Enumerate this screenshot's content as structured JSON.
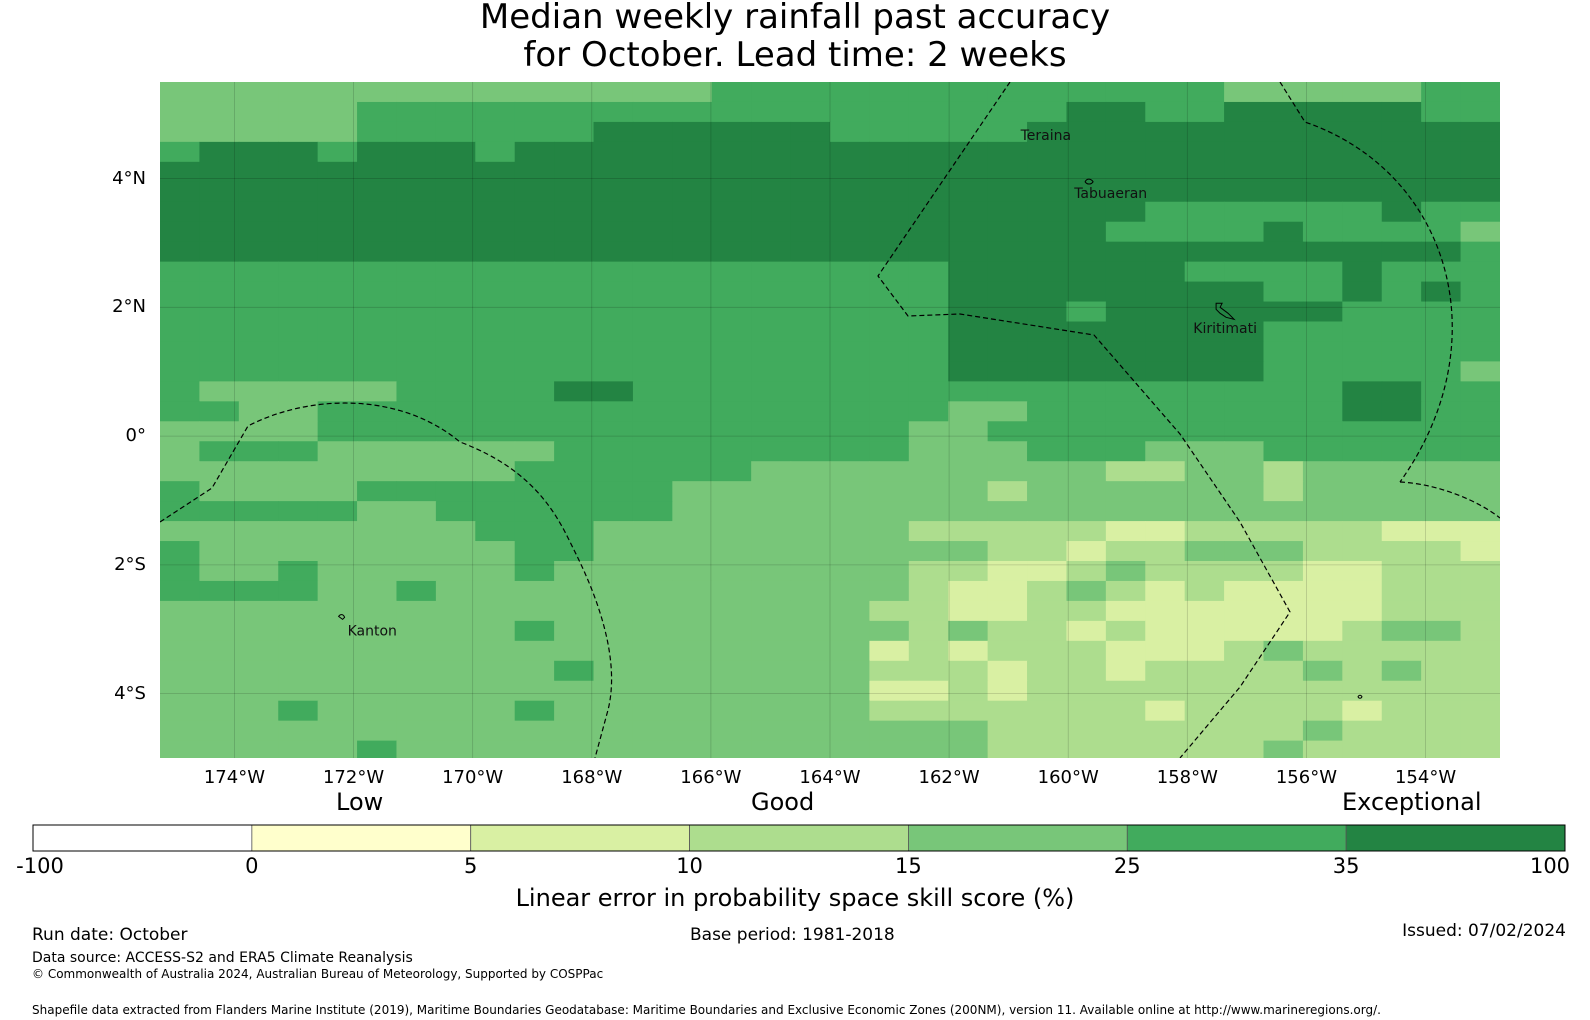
{
  "title": {
    "line1": "Median weekly rainfall past accuracy",
    "line2": "for October. Lead time: 2 weeks"
  },
  "map": {
    "lon_range": [
      -175.25,
      -152.75
    ],
    "lat_range": [
      -5.0,
      5.5
    ],
    "lat_ticks": [
      {
        "value": 4,
        "label": "4°N"
      },
      {
        "value": 2,
        "label": "2°N"
      },
      {
        "value": 0,
        "label": "0°"
      },
      {
        "value": -2,
        "label": "2°S"
      },
      {
        "value": -4,
        "label": "4°S"
      }
    ],
    "lon_ticks": [
      {
        "value": -174,
        "label": "174°W"
      },
      {
        "value": -172,
        "label": "172°W"
      },
      {
        "value": -170,
        "label": "170°W"
      },
      {
        "value": -168,
        "label": "168°W"
      },
      {
        "value": -166,
        "label": "166°W"
      },
      {
        "value": -164,
        "label": "164°W"
      },
      {
        "value": -162,
        "label": "162°W"
      },
      {
        "value": -160,
        "label": "160°W"
      },
      {
        "value": -158,
        "label": "158°W"
      },
      {
        "value": -156,
        "label": "156°W"
      },
      {
        "value": -154,
        "label": "154°W"
      }
    ],
    "places": [
      {
        "name": "Teraina",
        "lon": -160.8,
        "lat": 4.6
      },
      {
        "name": "Tabuaeran",
        "lon": -159.9,
        "lat": 3.7
      },
      {
        "name": "Kiritimati",
        "lon": -157.9,
        "lat": 1.6
      },
      {
        "name": "Kanton",
        "lon": -172.1,
        "lat": -3.1
      }
    ],
    "category_colors": [
      "#ffffff",
      "#ffffcc",
      "#d9f0a3",
      "#addd8e",
      "#78c679",
      "#41ab5d",
      "#238443"
    ],
    "skill_grid_rows_north_to_south": [
      "4444444444444455555555555554444455",
      "4444455555555555555555566556666655",
      "4444455555566666655555666666666666",
      "5666566656666666666666666666666666",
      "6666666666666666666666666666666666",
      "6666666666666666666666666666666666",
      "6666666666666666666666666555555655",
      "6666666666666666666666665555655554",
      "6666666666666666666666666666666665",
      "5555555555555555555566666655556555",
      "5555555555555555555566666666556565",
      "5555555555555555555566656666665555",
      "5555555555555555555566666666555555",
      "5555555555555555555566666666555555",
      "5555555555555555555566666666555554",
      "5444445555665555555555555555556655",
      "5544555555555555555544555555556655",
      "4444555555555555555445555555555555",
      "4555444444555555555444555444555555",
      "4444444445555554444444443344344444",
      "5444455555555444444443444444344444",
      "5555544555555444444444444444444444",
      "4444444455544444444333332233333222",
      "5444444445544444444443323344433332",
      "5445444445444444444332234333322333",
      "5555445444444444444322343232222333",
      "4444444444444444443322332222222333",
      "4444444445444444444343323222223443",
      "4444444444444444442323332223433333",
      "4444444444544444443332332333343433",
      "4444444444444444442232333333333333",
      "4445444445444444443333333233332333",
      "4444444444444444444443333333343333",
      "4444454444444444444443333333433333"
    ],
    "grid_cell_size_deg": 0.5,
    "grid_start_lon": -175.25,
    "grid_start_lat": 5.5
  },
  "legend": {
    "categories": {
      "low": "Low",
      "good": "Good",
      "exceptional": "Exceptional"
    },
    "bins": [
      {
        "from": -100,
        "to": 0,
        "color": "#ffffff"
      },
      {
        "from": 0,
        "to": 5,
        "color": "#ffffcc"
      },
      {
        "from": 5,
        "to": 10,
        "color": "#d9f0a3"
      },
      {
        "from": 10,
        "to": 15,
        "color": "#addd8e"
      },
      {
        "from": 15,
        "to": 25,
        "color": "#78c679"
      },
      {
        "from": 25,
        "to": 35,
        "color": "#41ab5d"
      },
      {
        "from": 35,
        "to": 100,
        "color": "#238443"
      }
    ],
    "tick_labels": [
      "-100",
      "0",
      "5",
      "10",
      "15",
      "25",
      "35",
      "100"
    ],
    "axis_label": "Linear error in probability space skill score (%)"
  },
  "footer": {
    "run_date": "Run date: October",
    "base_period": "Base period: 1981-2018",
    "issued": "Issued: 07/02/2024",
    "data_source": "Data source: ACCESS-S2 and ERA5 Climate Reanalysis",
    "copyright": "© Commonwealth of Australia 2024, Australian Bureau of Meteorology, Supported by COSPPac",
    "shapefile": "Shapefile data extracted from Flanders Marine Institute (2019), Maritime Boundaries Geodatabase: Maritime Boundaries and Exclusive Economic Zones (200NM), version 11. Available online at http://www.marineregions.org/."
  }
}
